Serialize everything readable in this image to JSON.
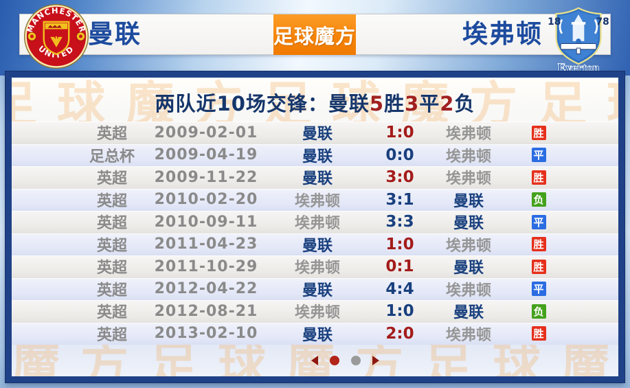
{
  "header": {
    "home_team": {
      "name": "曼联",
      "crest_text_top": "MANCHESTER",
      "crest_text_bottom": "UNITED"
    },
    "away_team": {
      "name": "埃弗顿",
      "crest_year_left": "18",
      "crest_year_right": "78",
      "crest_label": "Everton"
    },
    "brand": {
      "text": "足球魔方"
    }
  },
  "watermark_text": "足球魔方足球魔方足球魔方",
  "title": {
    "segments": [
      {
        "text": "两队近10场交锋：曼联",
        "color": "#16366b"
      },
      {
        "text": "5",
        "color": "#a02020"
      },
      {
        "text": "胜",
        "color": "#16366b"
      },
      {
        "text": "3",
        "color": "#a02020"
      },
      {
        "text": "平",
        "color": "#16366b"
      },
      {
        "text": "2",
        "color": "#a02020"
      },
      {
        "text": "负",
        "color": "#16366b"
      }
    ]
  },
  "table": {
    "rows": [
      {
        "competition": "英超",
        "date": "2009-02-01",
        "home": "曼联",
        "score": "1:0",
        "away": "埃弗顿",
        "result": "胜",
        "result_type": "win"
      },
      {
        "competition": "足总杯",
        "date": "2009-04-19",
        "home": "曼联",
        "score": "0:0",
        "away": "埃弗顿",
        "result": "平",
        "result_type": "draw"
      },
      {
        "competition": "英超",
        "date": "2009-11-22",
        "home": "曼联",
        "score": "3:0",
        "away": "埃弗顿",
        "result": "胜",
        "result_type": "win"
      },
      {
        "competition": "英超",
        "date": "2010-02-20",
        "home": "埃弗顿",
        "score": "3:1",
        "away": "曼联",
        "result": "负",
        "result_type": "loss"
      },
      {
        "competition": "英超",
        "date": "2010-09-11",
        "home": "埃弗顿",
        "score": "3:3",
        "away": "曼联",
        "result": "平",
        "result_type": "draw"
      },
      {
        "competition": "英超",
        "date": "2011-04-23",
        "home": "曼联",
        "score": "1:0",
        "away": "埃弗顿",
        "result": "胜",
        "result_type": "win"
      },
      {
        "competition": "英超",
        "date": "2011-10-29",
        "home": "埃弗顿",
        "score": "0:1",
        "away": "曼联",
        "result": "胜",
        "result_type": "win"
      },
      {
        "competition": "英超",
        "date": "2012-04-22",
        "home": "曼联",
        "score": "4:4",
        "away": "埃弗顿",
        "result": "平",
        "result_type": "draw"
      },
      {
        "competition": "英超",
        "date": "2012-08-21",
        "home": "埃弗顿",
        "score": "1:0",
        "away": "曼联",
        "result": "负",
        "result_type": "loss"
      },
      {
        "competition": "英超",
        "date": "2013-02-10",
        "home": "曼联",
        "score": "2:0",
        "away": "埃弗顿",
        "result": "胜",
        "result_type": "win"
      }
    ]
  },
  "pagination": {
    "dots": [
      {
        "active": true
      },
      {
        "active": false
      }
    ]
  },
  "colors": {
    "win_badge": "#e5301c",
    "draw_badge": "#2b6ce2",
    "loss_badge": "#44a11c",
    "score_win": "#a31c1a",
    "score_other": "#19407e",
    "team_self": "#19407e",
    "team_other": "#969696",
    "brand_orange": "#f68408",
    "frame_navy": "#1f4187",
    "active_dot": "#b2251a",
    "inactive_dot": "#9a9a9a",
    "arrow": "#8e170f"
  }
}
